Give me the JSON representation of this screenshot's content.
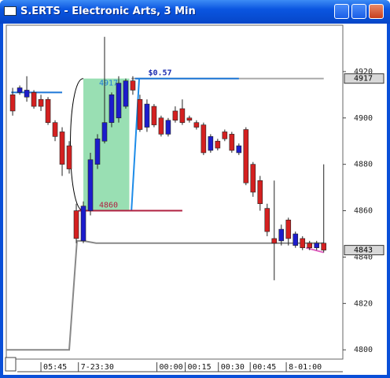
{
  "window_title": "S.ERTS - Electronic Arts, 3 Min",
  "chart_data": {
    "type": "candlestick",
    "xlim": [
      -0.9,
      46.7
    ],
    "ylim": [
      4796,
      4940
    ],
    "yticks": [
      4800,
      4820,
      4840,
      4860,
      4880,
      4900,
      4920
    ],
    "price_markers": [
      4917,
      4843
    ],
    "xticks": [
      {
        "value": 4,
        "label": "05:45"
      },
      {
        "value": 9.3,
        "label": "7-23:30"
      },
      {
        "value": 20.4,
        "label": "00:00"
      },
      {
        "value": 24.4,
        "label": "00:15"
      },
      {
        "value": 29.1,
        "label": "00:30"
      },
      {
        "value": 33.6,
        "label": "00:45"
      },
      {
        "value": 38.7,
        "label": "8-01:00"
      }
    ],
    "up_color": "#1c1ccc",
    "down_color": "#d42020",
    "open": [
      4910,
      4911,
      4909,
      4911,
      4908,
      4908,
      4898,
      4894,
      4888,
      4860,
      4847,
      4860,
      4880,
      4890,
      4898,
      4900,
      4905,
      4916,
      4908,
      4896,
      4905,
      4900,
      4893,
      4903,
      4904,
      4900,
      4898,
      4897,
      4886,
      4890,
      4894,
      4893,
      4885,
      4895,
      4880,
      4873,
      4861,
      4848,
      4847,
      4856,
      4845,
      4848,
      4846,
      4844,
      4846
    ],
    "high": [
      4913,
      4914,
      4918,
      4912,
      4910,
      4909,
      4899,
      4896,
      4890,
      4863,
      4864,
      4885,
      4893,
      4935,
      4911,
      4918,
      4917,
      4918,
      4910,
      4908,
      4906,
      4901,
      4900,
      4905,
      4908,
      4901,
      4899,
      4898,
      4893,
      4891,
      4895,
      4894,
      4889,
      4896,
      4881,
      4875,
      4863,
      4873,
      4854,
      4857,
      4851,
      4849,
      4847,
      4847,
      4880
    ],
    "low": [
      4901,
      4910,
      4907,
      4904,
      4903,
      4897,
      4890,
      4875,
      4876,
      4846,
      4846,
      4858,
      4878,
      4889,
      4896,
      4898,
      4904,
      4910,
      4894,
      4894,
      4896,
      4892,
      4892,
      4898,
      4897,
      4898,
      4895,
      4884,
      4885,
      4886,
      4890,
      4885,
      4884,
      4871,
      4866,
      4860,
      4849,
      4830,
      4845,
      4845,
      4844,
      4843,
      4843,
      4843,
      4842
    ],
    "close": [
      4903,
      4913,
      4912,
      4905,
      4905,
      4898,
      4892,
      4880,
      4878,
      4848,
      4862,
      4882,
      4891,
      4898,
      4910,
      4915,
      4916,
      4912,
      4895,
      4906,
      4897,
      4893,
      4899,
      4899,
      4898,
      4899,
      4896,
      4885,
      4892,
      4887,
      4891,
      4886,
      4888,
      4872,
      4868,
      4863,
      4851,
      4846,
      4852,
      4848,
      4850,
      4844,
      4844,
      4846,
      4843
    ],
    "overlays": [
      {
        "color": "#888888",
        "x": [
          -0.9,
          8,
          9.1,
          10,
          11.8,
          44
        ],
        "values": [
          4800,
          4800,
          4847,
          4847,
          4846,
          4846
        ]
      },
      {
        "color": "#1e78d8",
        "x": [
          -0.2,
          7
        ],
        "values": [
          4911,
          4911
        ]
      },
      {
        "color": "#aaaaaa",
        "x": [
          16.8,
          44
        ],
        "values": [
          4917,
          4917
        ]
      },
      {
        "color": "#1e78d8",
        "x": [
          17.3,
          32
        ],
        "values": [
          4917,
          4917
        ]
      },
      {
        "color": "#1e8ce8",
        "x": [
          16.8,
          17.9
        ],
        "values": [
          4860,
          4917
        ]
      },
      {
        "color": "#b02040",
        "x": [
          9.3,
          24
        ],
        "values": [
          4860,
          4860
        ]
      },
      {
        "color": "#e060c0",
        "x": [
          41.5,
          44
        ],
        "values": [
          4844,
          4842
        ]
      }
    ],
    "box": {
      "x": [
        10,
        16.5
      ],
      "ylim": [
        4860,
        4917
      ],
      "color": "#7fd7a0"
    },
    "annotation": "$0.57"
  }
}
